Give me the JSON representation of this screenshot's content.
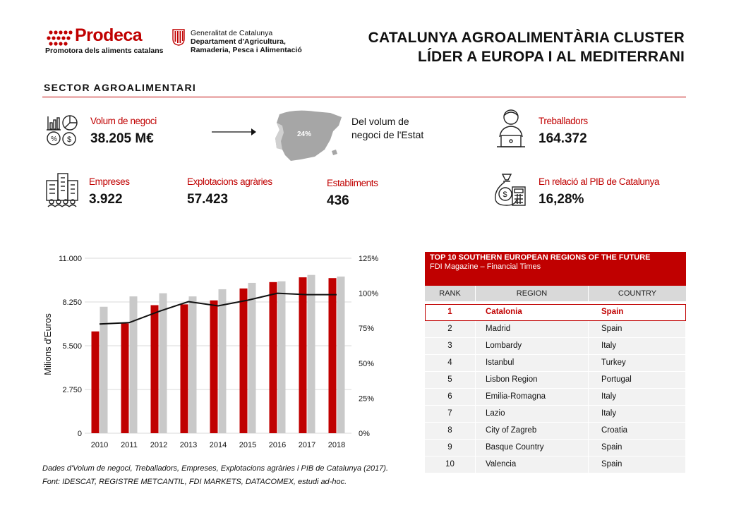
{
  "header": {
    "brand_name": "Prodeca",
    "brand_tagline": "Promotora dels aliments catalans",
    "gov_lines": [
      "Generalitat de Catalunya",
      "Departament d'Agricultura,",
      "Ramaderia, Pesca i Alimentació"
    ],
    "title_lines": [
      "CATALUNYA AGROALIMENTÀRIA CLUSTER",
      "LÍDER A EUROPA I AL MEDITERRANI"
    ]
  },
  "section_title": "SECTOR  AGROALIMENTARI",
  "kpis": {
    "volum": {
      "label": "Volum de negoci",
      "value": "38.205 M€",
      "icon": "business-volume-icon"
    },
    "map": {
      "share": "24%",
      "caption_lines": [
        "Del volum de",
        "negoci de l'Estat"
      ],
      "icon": "spain-map-icon"
    },
    "treballadors": {
      "label": "Treballadors",
      "value": "164.372",
      "icon": "worker-icon"
    },
    "empreses": {
      "label": "Empreses",
      "value": "3.922",
      "icon": "companies-icon"
    },
    "explotacions": {
      "label": "Explotacions agràries",
      "value": "57.423"
    },
    "establiments": {
      "label": "Establiments",
      "value": "436"
    },
    "pib": {
      "label": "En relació al PIB de Catalunya",
      "value": "16,28%",
      "icon": "money-bag-icon"
    }
  },
  "chart_data": {
    "type": "bar",
    "categories": [
      "2010",
      "2011",
      "2012",
      "2013",
      "2014",
      "2015",
      "2016",
      "2017",
      "2018"
    ],
    "series": [
      {
        "values": [
          6400,
          6900,
          8050,
          8100,
          8350,
          9100,
          9500,
          9800,
          9750
        ],
        "color": "#c00000",
        "axis": "left"
      },
      {
        "values": [
          7950,
          8600,
          8800,
          8600,
          9050,
          9450,
          9550,
          9950,
          9850
        ],
        "color": "#c9c9c9",
        "axis": "left"
      },
      {
        "type": "line",
        "values": [
          78,
          79,
          87,
          94,
          91,
          95,
          100,
          99,
          99
        ],
        "color": "#111111",
        "axis": "right"
      }
    ],
    "ylabel": "Milions d'Euros",
    "ylim": [
      0,
      11000
    ],
    "yticks": [
      "0",
      "2.750",
      "5.500",
      "8.250",
      "11.000"
    ],
    "y2lim": [
      0,
      125
    ],
    "y2ticks": [
      "0%",
      "25%",
      "50%",
      "75%",
      "100%",
      "125%"
    ],
    "grid": "horizontal"
  },
  "notes": [
    "Dades d'Volum de negoci, Treballadors, Empreses, Explotacions agràries i PIB de Catalunya (2017).",
    "Font: IDESCAT, REGISTRE METCANTIL, FDI MARKETS, DATACOMEX, estudi ad-hoc."
  ],
  "ranking": {
    "title": "TOP 10 SOUTHERN EUROPEAN REGIONS OF THE FUTURE",
    "subtitle": "FDI Magazine – Financial Times",
    "columns": [
      "RANK",
      "REGION",
      "COUNTRY"
    ],
    "rows": [
      {
        "rank": "1",
        "region": "Catalonia",
        "country": "Spain"
      },
      {
        "rank": "2",
        "region": "Madrid",
        "country": "Spain"
      },
      {
        "rank": "3",
        "region": "Lombardy",
        "country": "Italy"
      },
      {
        "rank": "4",
        "region": "Istanbul",
        "country": "Turkey"
      },
      {
        "rank": "5",
        "region": "Lisbon Region",
        "country": "Portugal"
      },
      {
        "rank": "6",
        "region": "Emilia-Romagna",
        "country": "Italy"
      },
      {
        "rank": "7",
        "region": "Lazio",
        "country": "Italy"
      },
      {
        "rank": "8",
        "region": "City of Zagreb",
        "country": "Croatia"
      },
      {
        "rank": "9",
        "region": "Basque Country",
        "country": "Spain"
      },
      {
        "rank": "10",
        "region": "Valencia",
        "country": "Spain"
      }
    ]
  }
}
